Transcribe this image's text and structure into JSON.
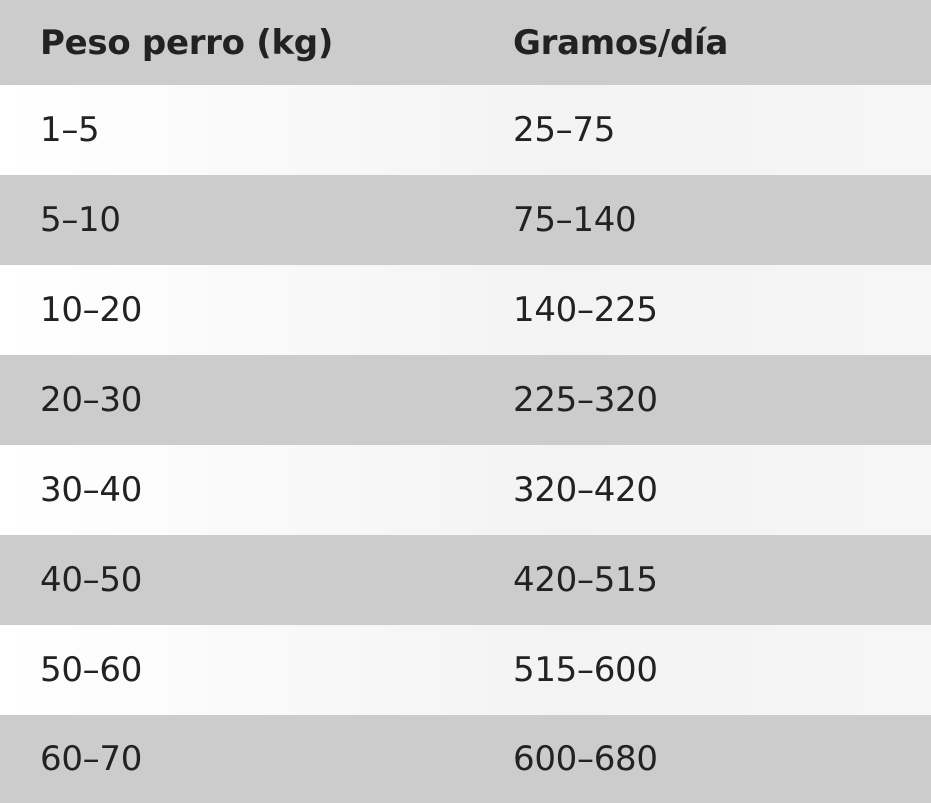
{
  "table": {
    "headers": [
      "Peso perro (kg)",
      "Gramos/día"
    ],
    "rows": [
      [
        "1–5",
        "25–75"
      ],
      [
        "5–10",
        "75–140"
      ],
      [
        "10–20",
        "140–225"
      ],
      [
        "20–30",
        "225–320"
      ],
      [
        "30–40",
        "320–420"
      ],
      [
        "40–50",
        "420–515"
      ],
      [
        "50–60",
        "515–600"
      ],
      [
        "60–70",
        "600–680"
      ]
    ]
  }
}
